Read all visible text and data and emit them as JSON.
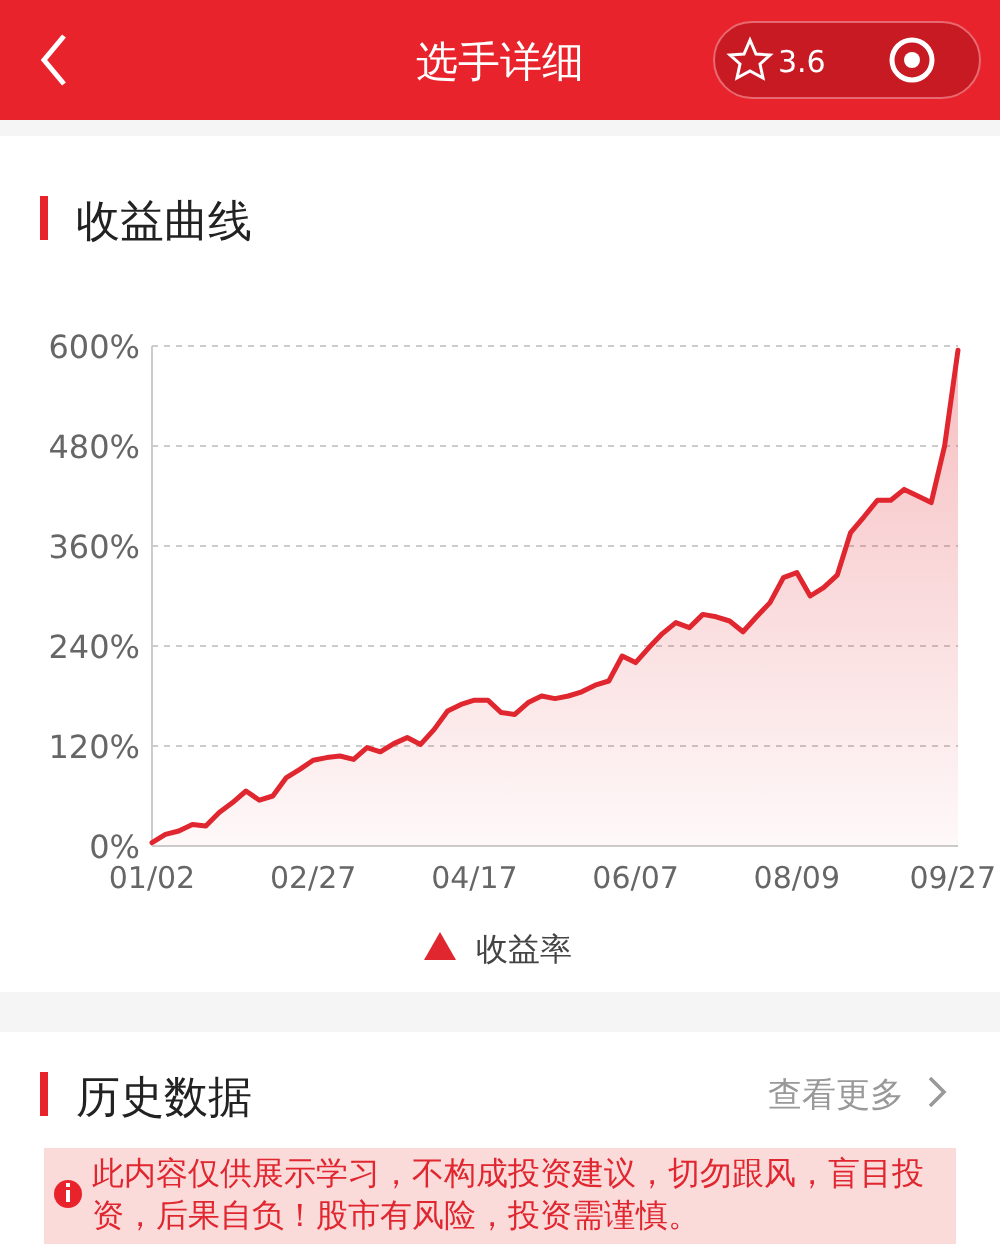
{
  "chart_data": {
    "type": "area",
    "title": "收益曲线",
    "categories": [
      "01/02",
      null,
      null,
      null,
      null,
      null,
      null,
      null,
      null,
      null,
      null,
      null,
      "02/27",
      null,
      null,
      null,
      null,
      null,
      null,
      null,
      null,
      null,
      null,
      null,
      "04/17",
      null,
      null,
      null,
      null,
      null,
      null,
      null,
      null,
      null,
      null,
      null,
      "06/07",
      null,
      null,
      null,
      null,
      null,
      null,
      null,
      null,
      null,
      null,
      null,
      "08/09",
      null,
      null,
      null,
      null,
      null,
      null,
      null,
      null,
      null,
      null,
      null,
      "09/27"
    ],
    "series": [
      {
        "name": "收益率",
        "color": "#e0262f",
        "values": [
          4,
          14,
          18,
          26,
          24,
          40,
          52,
          66,
          55,
          60,
          82,
          92,
          103,
          106,
          108,
          104,
          118,
          113,
          123,
          130,
          122,
          140,
          162,
          170,
          175,
          175,
          160,
          158,
          172,
          180,
          177,
          180,
          185,
          193,
          198,
          228,
          220,
          238,
          255,
          268,
          262,
          278,
          275,
          270,
          257,
          275,
          292,
          322,
          328,
          300,
          310,
          325,
          376,
          395,
          415,
          415,
          428,
          420,
          412,
          480,
          595
        ]
      }
    ],
    "ylim": [
      0,
      600
    ],
    "yticks": [
      {
        "value": 0,
        "label": "0%"
      },
      {
        "value": 120,
        "label": "120%"
      },
      {
        "value": 240,
        "label": "240%"
      },
      {
        "value": 360,
        "label": "360%"
      },
      {
        "value": 480,
        "label": "480%"
      },
      {
        "value": 600,
        "label": "600%"
      }
    ],
    "grid": "y",
    "legend": "bottom",
    "marker": "none",
    "line_style": "solid",
    "annotations": [
      "选手详细",
      "3.6",
      "历史数据",
      "查看更多",
      "此内容仅供展示学习，不构成投资建议，切勿跟风，盲目投资，后果自负！股市有风险，投资需谨慎。"
    ]
  }
}
